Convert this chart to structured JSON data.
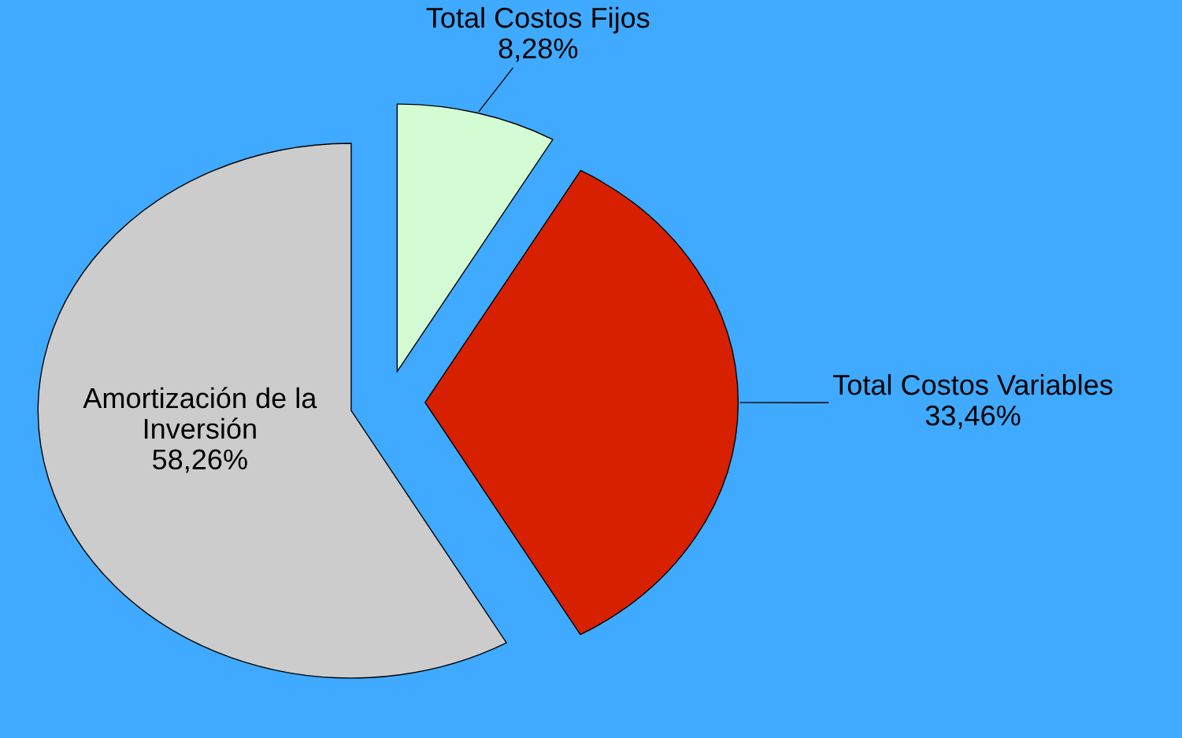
{
  "chart_data": {
    "type": "pie",
    "categories": [
      "Total Costos Fijos",
      "Total Costos Variables",
      "Amortización de la Inversión"
    ],
    "values": [
      8.28,
      33.46,
      58.26
    ],
    "colors": [
      "#d4fcd4",
      "#d62000",
      "#cccccc"
    ],
    "value_labels": [
      "8,28%",
      "33,46%",
      "58,26%"
    ],
    "legend": false
  }
}
